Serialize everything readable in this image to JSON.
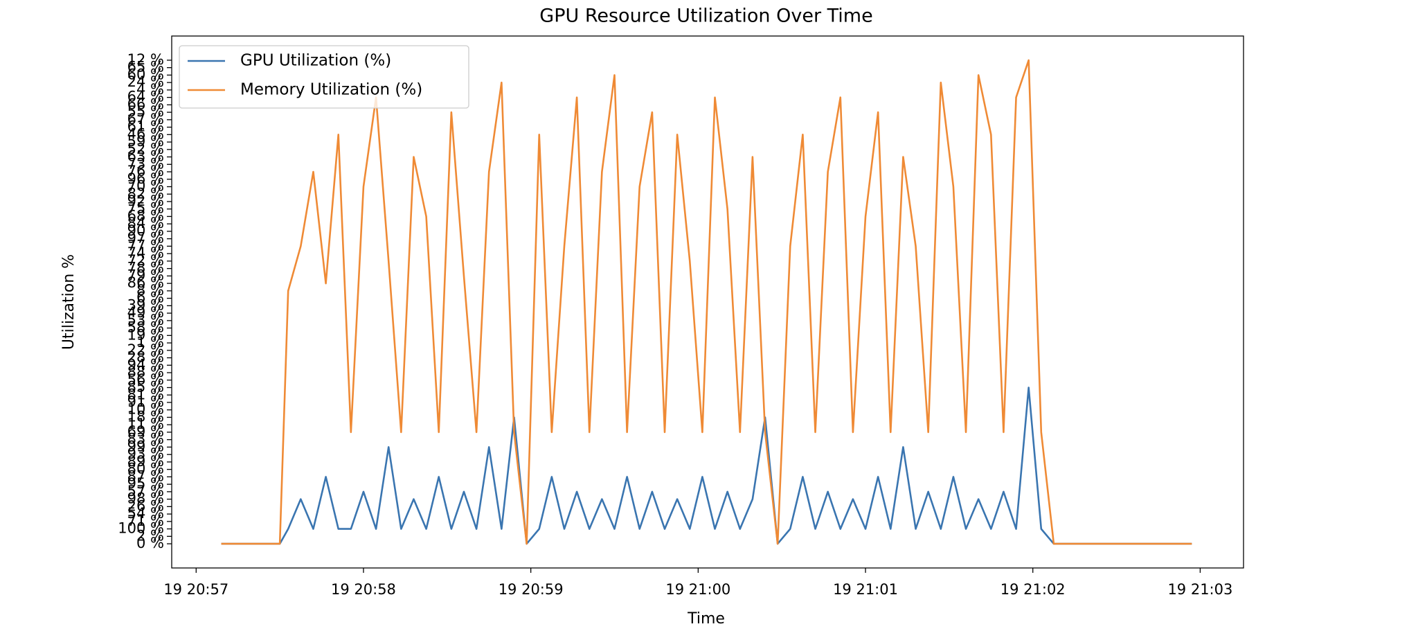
{
  "chart_data": {
    "type": "line",
    "title": "GPU Resource Utilization Over Time",
    "x_label": "Time",
    "y_label": "Utilization %",
    "legend_position": "upper left",
    "grid": false,
    "ycategories": [
      "0 %",
      "2 %",
      "100 %",
      "71 %",
      "54 %",
      "26 %",
      "98 %",
      "57 %",
      "95 %",
      "87 %",
      "80 %",
      "89 %",
      "93 %",
      "99 %",
      "83 %",
      "69 %",
      "11 %",
      "18 %",
      "10 %",
      "91 %",
      "81 %",
      "85 %",
      "56 %",
      "88 %",
      "94 %",
      "28 %",
      "22 %",
      "1 %",
      "19 %",
      "58 %",
      "53 %",
      "49 %",
      "39 %",
      "6 %",
      "8 %",
      "86 %",
      "79 %",
      "78 %",
      "72 %",
      "74 %",
      "77 %",
      "97 %",
      "90 %",
      "84 %",
      "68 %",
      "75 %",
      "92 %",
      "82 %",
      "70 %",
      "96 %",
      "76 %",
      "73 %",
      "63 %",
      "52 %",
      "59 %",
      "46 %",
      "61 %",
      "67 %",
      "55 %",
      "66 %",
      "64 %",
      "4 %",
      "24 %",
      "60 %",
      "65 %",
      "12 %"
    ],
    "xlim": [
      -0.146,
      6.259
    ],
    "xticks": [
      {
        "value": 0,
        "label": "19 20:57"
      },
      {
        "value": 1,
        "label": "19 20:58"
      },
      {
        "value": 2,
        "label": "19 20:59"
      },
      {
        "value": 3,
        "label": "19 21:00"
      },
      {
        "value": 4,
        "label": "19 21:01"
      },
      {
        "value": 5,
        "label": "19 21:02"
      },
      {
        "value": 6,
        "label": "19 21:03"
      }
    ],
    "x": [
      0.15,
      0.5,
      0.55,
      0.625,
      0.7,
      0.775,
      0.85,
      0.925,
      1.0,
      1.075,
      1.15,
      1.225,
      1.3,
      1.375,
      1.45,
      1.525,
      1.6,
      1.675,
      1.75,
      1.825,
      1.9,
      1.975,
      2.05,
      2.125,
      2.2,
      2.275,
      2.35,
      2.425,
      2.5,
      2.575,
      2.65,
      2.725,
      2.8,
      2.875,
      2.95,
      3.025,
      3.1,
      3.175,
      3.25,
      3.325,
      3.4,
      3.475,
      3.55,
      3.625,
      3.7,
      3.775,
      3.85,
      3.925,
      4.0,
      4.075,
      4.15,
      4.225,
      4.3,
      4.375,
      4.45,
      4.525,
      4.6,
      4.675,
      4.75,
      4.825,
      4.9,
      4.975,
      5.05,
      5.125,
      5.2,
      5.95
    ],
    "series": [
      {
        "name": "GPU Utilization (%)",
        "color": "#3a75b0",
        "values": [
          "0 %",
          "0 %",
          "100 %",
          "98 %",
          "100 %",
          "87 %",
          "100 %",
          "100 %",
          "57 %",
          "100 %",
          "99 %",
          "100 %",
          "98 %",
          "100 %",
          "87 %",
          "100 %",
          "57 %",
          "100 %",
          "99 %",
          "100 %",
          "18 %",
          "0 %",
          "100 %",
          "87 %",
          "100 %",
          "57 %",
          "100 %",
          "98 %",
          "100 %",
          "87 %",
          "100 %",
          "57 %",
          "100 %",
          "98 %",
          "100 %",
          "87 %",
          "100 %",
          "57 %",
          "100 %",
          "98 %",
          "18 %",
          "0 %",
          "100 %",
          "87 %",
          "100 %",
          "57 %",
          "100 %",
          "98 %",
          "100 %",
          "87 %",
          "100 %",
          "99 %",
          "100 %",
          "57 %",
          "100 %",
          "87 %",
          "100 %",
          "98 %",
          "100 %",
          "57 %",
          "100 %",
          "85 %",
          "100 %",
          "0 %",
          "0 %",
          "0 %"
        ]
      },
      {
        "name": "Memory Utilization (%)",
        "color": "#ef8a35",
        "values": [
          "0 %",
          "0 %",
          "8 %",
          "77 %",
          "76 %",
          "86 %",
          "46 %",
          "69 %",
          "70 %",
          "64 %",
          "72 %",
          "69 %",
          "63 %",
          "68 %",
          "69 %",
          "55 %",
          "79 %",
          "69 %",
          "76 %",
          "24 %",
          "69 %",
          "0 %",
          "46 %",
          "69 %",
          "77 %",
          "64 %",
          "69 %",
          "76 %",
          "60 %",
          "69 %",
          "70 %",
          "55 %",
          "69 %",
          "46 %",
          "72 %",
          "69 %",
          "64 %",
          "75 %",
          "69 %",
          "63 %",
          "69 %",
          "0 %",
          "77 %",
          "46 %",
          "69 %",
          "76 %",
          "64 %",
          "69 %",
          "68 %",
          "55 %",
          "69 %",
          "63 %",
          "77 %",
          "69 %",
          "24 %",
          "70 %",
          "69 %",
          "60 %",
          "46 %",
          "69 %",
          "64 %",
          "12 %",
          "69 %",
          "0 %",
          "0 %",
          "0 %"
        ]
      }
    ]
  }
}
